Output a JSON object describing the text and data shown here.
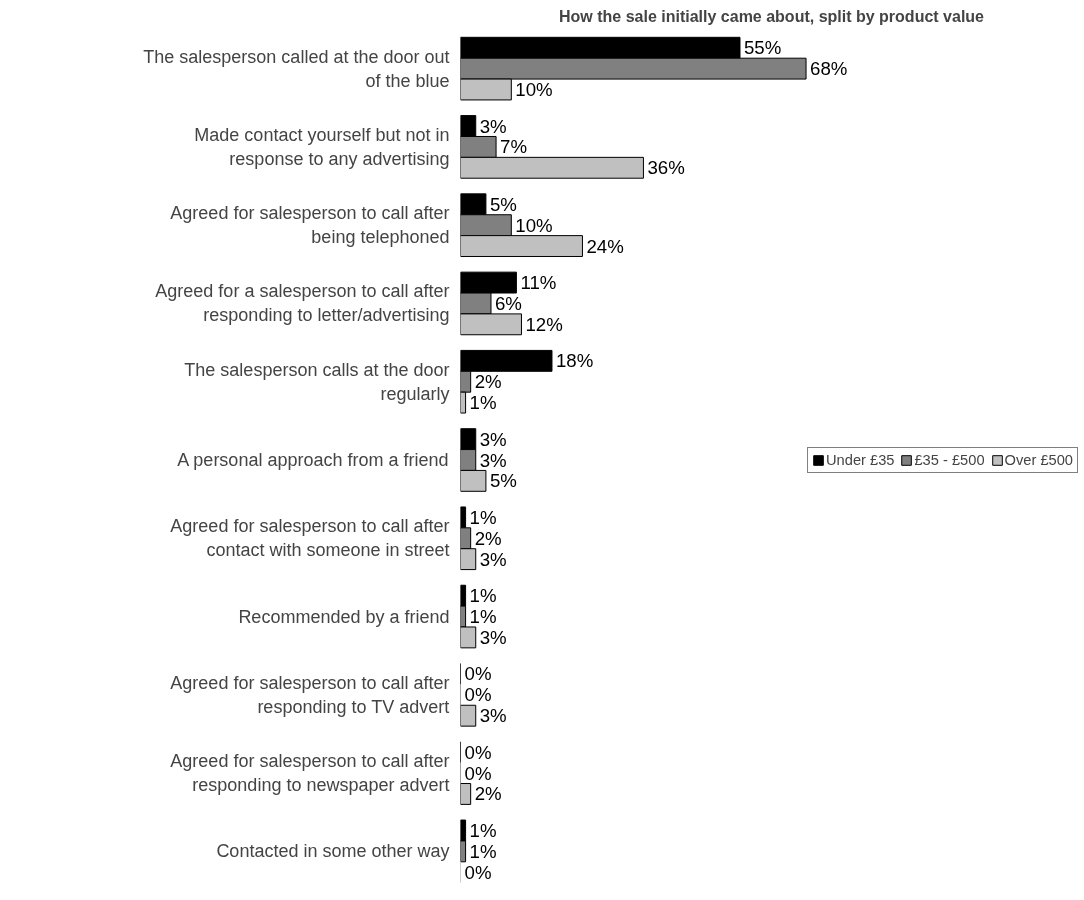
{
  "chart_data": {
    "type": "bar",
    "orientation": "horizontal",
    "title": "How the sale initially came about, split by product value",
    "categories": [
      "The salesperson called at the door out of the blue",
      "Made contact yourself but not in response to any advertising",
      "Agreed for salesperson to call after being telephoned",
      "Agreed for a salesperson to call after responding to letter/advertising",
      "The salesperson calls at the door regularly",
      "A personal approach from a friend",
      "Agreed for salesperson to call after contact with someone in street",
      "Recommended by a friend",
      "Agreed for salesperson to call after responding to TV advert",
      "Agreed for salesperson to call after responding to newspaper advert",
      "Contacted in some other way"
    ],
    "series": [
      {
        "name": "Under £35",
        "color": "#000000",
        "values": [
          55,
          3,
          5,
          11,
          18,
          3,
          1,
          1,
          0,
          0,
          1
        ],
        "value_labels": [
          "55%",
          "3%",
          "5%",
          "11%",
          "18%",
          "3%",
          "1%",
          "1%",
          "0%",
          "0%",
          "1%"
        ]
      },
      {
        "name": "£35 - £500",
        "color": "#808080",
        "values": [
          68,
          7,
          10,
          6,
          2,
          3,
          2,
          1,
          0,
          0,
          1
        ],
        "value_labels": [
          "68%",
          "7%",
          "10%",
          "6%",
          "2%",
          "3%",
          "2%",
          "1%",
          "0%",
          "0%",
          "1%"
        ]
      },
      {
        "name": "Over £500",
        "color": "#c0c0c0",
        "values": [
          10,
          36,
          24,
          12,
          1,
          5,
          3,
          3,
          3,
          2,
          0
        ],
        "value_labels": [
          "10%",
          "36%",
          "24%",
          "12%",
          "1%",
          "5%",
          "3%",
          "3%",
          "3%",
          "2%",
          "0%"
        ]
      }
    ],
    "legend": "right",
    "grid": false,
    "tick_labels": "y"
  }
}
